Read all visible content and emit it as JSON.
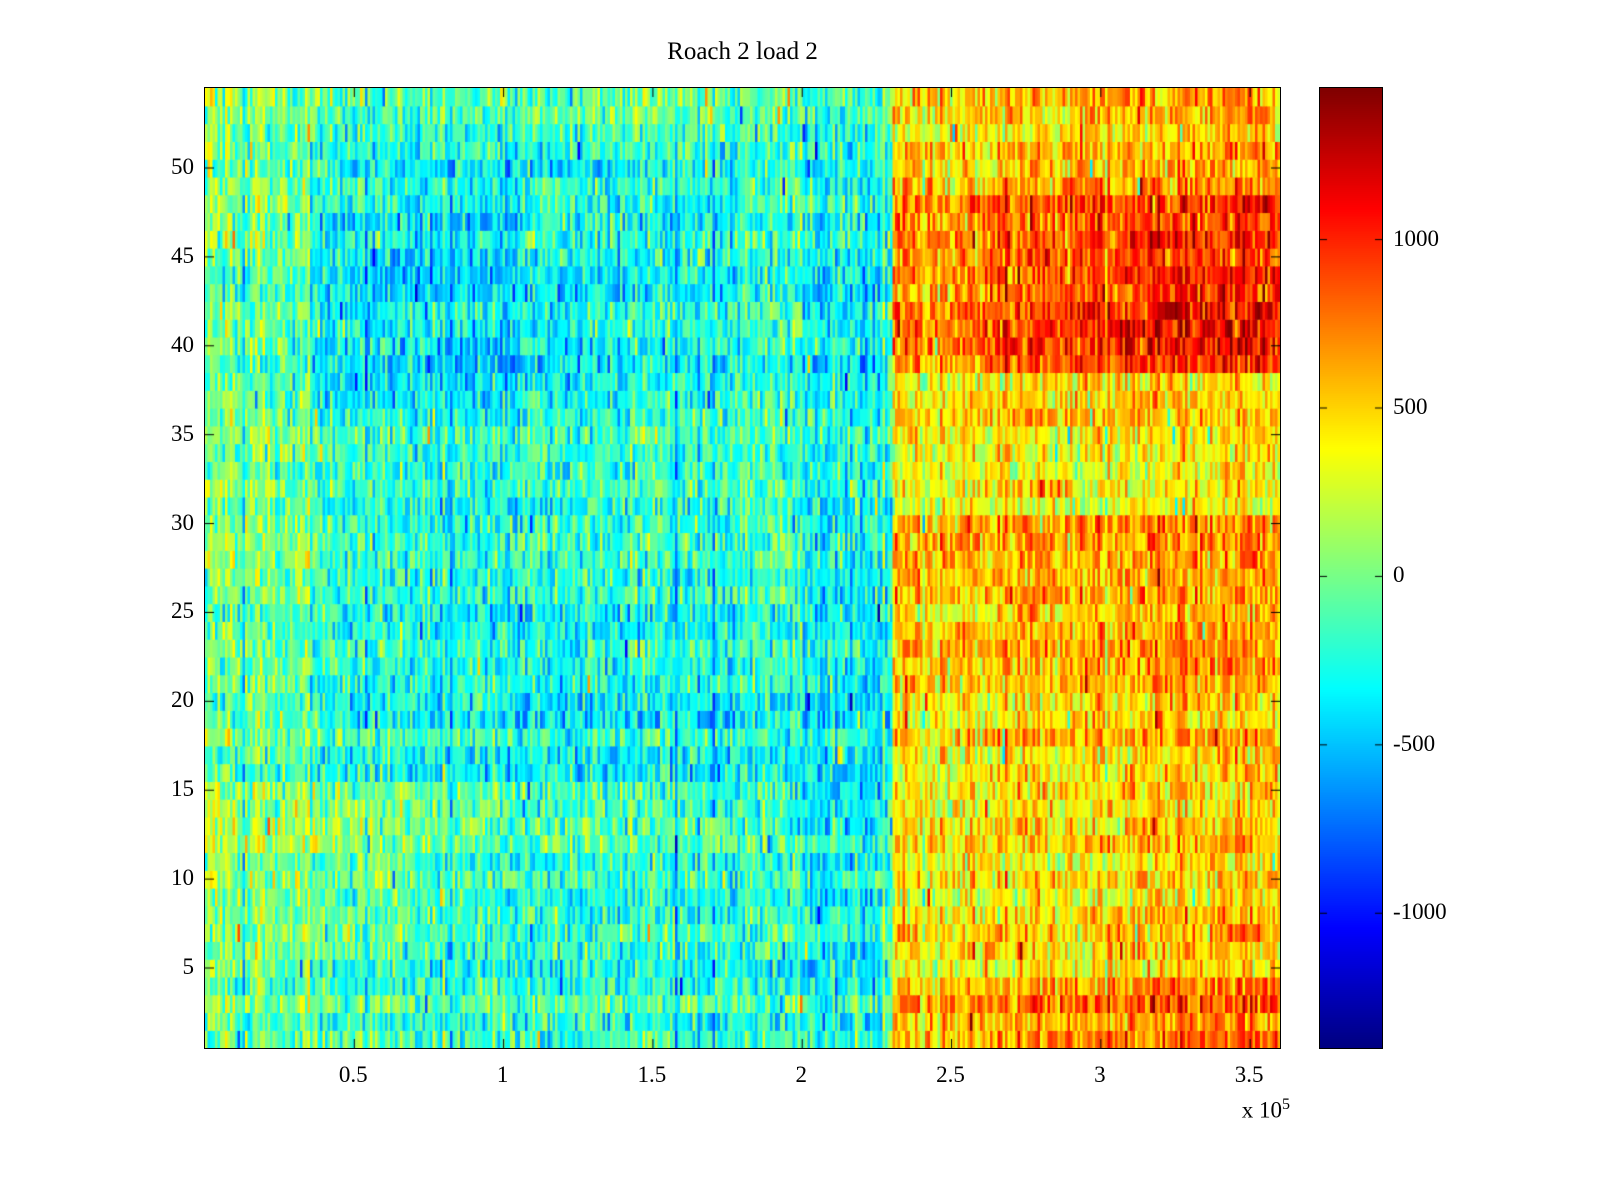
{
  "figure": {
    "title": "Roach 2 load 2",
    "background": "#ffffff"
  },
  "chart_data": {
    "type": "heatmap",
    "title": "Roach 2 load 2",
    "xlabel": "",
    "ylabel": "",
    "x_range": [
      0,
      360000
    ],
    "y_range": [
      0.5,
      54.5
    ],
    "x_tick_values": [
      50000,
      100000,
      150000,
      200000,
      250000,
      300000,
      350000
    ],
    "x_tick_labels": [
      "0.5",
      "1",
      "1.5",
      "2",
      "2.5",
      "3",
      "3.5"
    ],
    "x_exponent_label": "x 10",
    "x_exponent_power": "5",
    "y_tick_values": [
      5,
      10,
      15,
      20,
      25,
      30,
      35,
      40,
      45,
      50
    ],
    "y_tick_labels": [
      "5",
      "10",
      "15",
      "20",
      "25",
      "30",
      "35",
      "40",
      "45",
      "50"
    ],
    "colormap": "jet",
    "color_axis": [
      -1400,
      1450
    ],
    "colorbar_tick_values": [
      1000,
      500,
      0,
      -500,
      -1000
    ],
    "colorbar_tick_labels": [
      "1000",
      "500",
      "0",
      "-500",
      "-1000"
    ],
    "grid_model": {
      "x_edges": [
        0,
        35000,
        70000,
        105000,
        140000,
        175000,
        200000,
        230000,
        260000,
        290000,
        320000,
        360000
      ],
      "y_edges": [
        0.5,
        4.5,
        8.5,
        12.5,
        15.5,
        20.5,
        25.5,
        30.5,
        35.5,
        38.5,
        44.5,
        48.5,
        51.5,
        54.5
      ],
      "values": [
        [
          -50,
          -100,
          -150,
          -150,
          -150,
          -200,
          -250,
          600,
          700,
          750,
          800
        ],
        [
          0,
          -100,
          -200,
          -200,
          -200,
          -250,
          -300,
          450,
          500,
          500,
          550
        ],
        [
          100,
          0,
          -100,
          -150,
          -150,
          -200,
          -300,
          400,
          450,
          450,
          500
        ],
        [
          150,
          100,
          0,
          -50,
          -50,
          -150,
          -300,
          500,
          550,
          550,
          550
        ],
        [
          -50,
          -200,
          -250,
          -300,
          -250,
          -250,
          -350,
          450,
          500,
          550,
          600
        ],
        [
          -100,
          -250,
          -300,
          -300,
          -250,
          -250,
          -350,
          500,
          550,
          600,
          650
        ],
        [
          -50,
          -250,
          -300,
          -250,
          -250,
          -200,
          -350,
          550,
          600,
          600,
          600
        ],
        [
          50,
          -150,
          -200,
          -150,
          -100,
          -100,
          -250,
          400,
          450,
          400,
          450
        ],
        [
          -50,
          -300,
          -350,
          -300,
          -200,
          -150,
          -300,
          450,
          500,
          550,
          500
        ],
        [
          -100,
          -350,
          -400,
          -350,
          -250,
          -200,
          -350,
          750,
          900,
          1000,
          1050
        ],
        [
          -50,
          -350,
          -400,
          -300,
          -250,
          -200,
          -300,
          700,
          850,
          900,
          950
        ],
        [
          0,
          -250,
          -300,
          -250,
          -200,
          -150,
          -250,
          550,
          600,
          650,
          700
        ],
        [
          0,
          -100,
          -150,
          -100,
          -50,
          -100,
          -200,
          450,
          500,
          550,
          600
        ]
      ],
      "noise_amplitude": 480,
      "column_streak_amplitude": 120,
      "row_band_amplitude": 90,
      "columns": 430,
      "rows": 54,
      "seed": 20240917
    }
  }
}
